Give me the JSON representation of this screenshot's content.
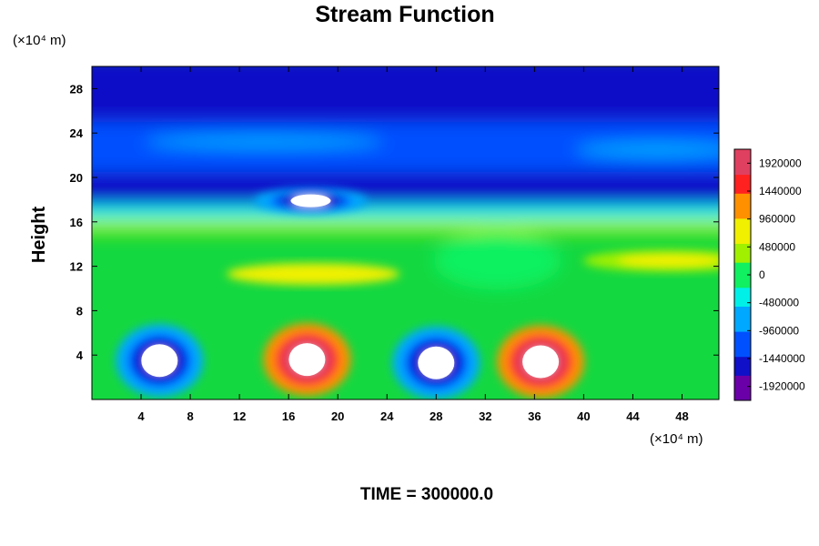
{
  "chart_data": {
    "type": "heatmap",
    "title": "Stream Function",
    "ylabel": "Height",
    "x_unit": "(×10⁴ m)",
    "y_unit": "(×10⁴ m)",
    "x_range": [
      0,
      51
    ],
    "y_range": [
      0,
      30
    ],
    "x_ticks": [
      4,
      8,
      12,
      16,
      20,
      24,
      28,
      32,
      36,
      40,
      44,
      48
    ],
    "y_ticks": [
      4,
      8,
      12,
      16,
      20,
      24,
      28
    ],
    "colorbar": {
      "range": [
        -2160000,
        2160000
      ],
      "tick_values": [
        1920000,
        1440000,
        960000,
        480000,
        0,
        -480000,
        -960000,
        -1440000,
        -1920000
      ],
      "tick_labels": [
        "1920000",
        "1440000",
        "960000",
        "480000",
        "0",
        "-480000",
        "-960000",
        "-1440000",
        "-1920000"
      ],
      "colors_low_to_high": [
        "#6a00a8",
        "#1010c8",
        "#0050ff",
        "#00a8ff",
        "#00f0e8",
        "#10f060",
        "#a0f000",
        "#f0f000",
        "#ff9000",
        "#ff2020",
        "#e04060",
        "#f0a0a0"
      ]
    },
    "features": [
      {
        "x": 5.5,
        "y": 3.5,
        "value": -2200000
      },
      {
        "x": 17.5,
        "y": 3.6,
        "value": 2200000
      },
      {
        "x": 28.0,
        "y": 3.3,
        "value": -2200000
      },
      {
        "x": 36.5,
        "y": 3.4,
        "value": 2200000
      },
      {
        "x": 17.8,
        "y": 17.9,
        "value": -2200000
      },
      {
        "x": 18.0,
        "y": 11.3,
        "value": 700000
      },
      {
        "x": 47.0,
        "y": 12.5,
        "value": 450000
      }
    ],
    "footer": "TIME = 300000.0"
  }
}
